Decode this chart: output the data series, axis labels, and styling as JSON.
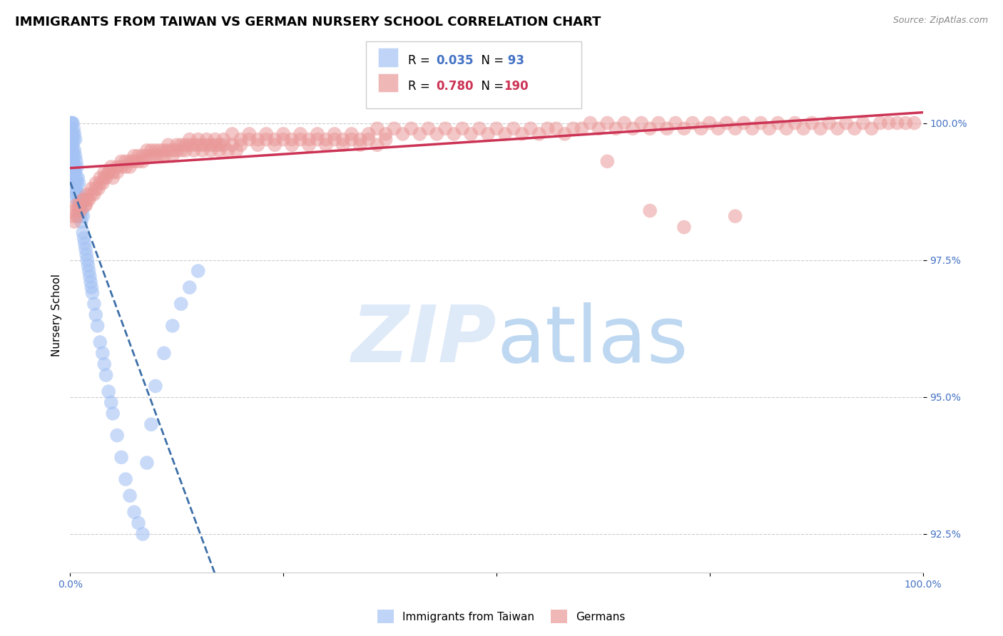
{
  "title": "IMMIGRANTS FROM TAIWAN VS GERMAN NURSERY SCHOOL CORRELATION CHART",
  "source": "Source: ZipAtlas.com",
  "ylabel": "Nursery School",
  "xmin": 0.0,
  "xmax": 1.0,
  "ymin": 91.8,
  "ymax": 101.2,
  "blue_R": 0.035,
  "blue_N": 93,
  "pink_R": 0.78,
  "pink_N": 190,
  "blue_color": "#a4c2f4",
  "pink_color": "#ea9999",
  "blue_line_color": "#3d6fa8",
  "pink_line_color": "#cc3355",
  "legend_label_blue": "Immigrants from Taiwan",
  "legend_label_pink": "Germans",
  "background_color": "#ffffff",
  "grid_color": "#cccccc",
  "axis_label_color": "#4472c4",
  "title_fontsize": 13,
  "axis_fontsize": 11,
  "tick_fontsize": 10,
  "blue_scatter_x": [
    0.001,
    0.001,
    0.001,
    0.001,
    0.002,
    0.002,
    0.002,
    0.002,
    0.002,
    0.003,
    0.003,
    0.003,
    0.003,
    0.003,
    0.003,
    0.004,
    0.004,
    0.004,
    0.004,
    0.005,
    0.005,
    0.005,
    0.005,
    0.006,
    0.006,
    0.006,
    0.006,
    0.007,
    0.007,
    0.007,
    0.008,
    0.008,
    0.008,
    0.009,
    0.009,
    0.01,
    0.01,
    0.01,
    0.011,
    0.011,
    0.012,
    0.012,
    0.013,
    0.013,
    0.014,
    0.015,
    0.015,
    0.016,
    0.017,
    0.018,
    0.019,
    0.02,
    0.021,
    0.022,
    0.023,
    0.024,
    0.025,
    0.026,
    0.028,
    0.03,
    0.032,
    0.035,
    0.038,
    0.04,
    0.042,
    0.045,
    0.048,
    0.05,
    0.055,
    0.06,
    0.065,
    0.07,
    0.075,
    0.08,
    0.085,
    0.09,
    0.095,
    0.1,
    0.11,
    0.12,
    0.13,
    0.14,
    0.15,
    0.001,
    0.001,
    0.002,
    0.002,
    0.003,
    0.003,
    0.004,
    0.005,
    0.006,
    0.007
  ],
  "blue_scatter_y": [
    99.8,
    99.6,
    100.0,
    99.9,
    99.7,
    99.5,
    99.8,
    100.0,
    99.4,
    99.6,
    99.3,
    99.8,
    100.0,
    99.5,
    99.2,
    99.7,
    99.4,
    99.9,
    99.1,
    99.5,
    99.2,
    99.8,
    98.9,
    99.4,
    99.1,
    99.7,
    98.8,
    99.3,
    99.0,
    98.7,
    99.2,
    98.9,
    98.6,
    99.0,
    98.7,
    98.9,
    98.6,
    98.3,
    98.7,
    98.4,
    98.6,
    98.3,
    98.5,
    98.2,
    98.4,
    98.3,
    98.0,
    97.9,
    97.8,
    97.7,
    97.6,
    97.5,
    97.4,
    97.3,
    97.2,
    97.1,
    97.0,
    96.9,
    96.7,
    96.5,
    96.3,
    96.0,
    95.8,
    95.6,
    95.4,
    95.1,
    94.9,
    94.7,
    94.3,
    93.9,
    93.5,
    93.2,
    92.9,
    92.7,
    92.5,
    93.8,
    94.5,
    95.2,
    95.8,
    96.3,
    96.7,
    97.0,
    97.3,
    99.3,
    99.5,
    99.1,
    99.4,
    99.0,
    99.3,
    99.2,
    99.1,
    98.9,
    98.7
  ],
  "pink_scatter_x": [
    0.003,
    0.005,
    0.007,
    0.01,
    0.012,
    0.015,
    0.018,
    0.02,
    0.022,
    0.025,
    0.028,
    0.03,
    0.033,
    0.035,
    0.038,
    0.04,
    0.042,
    0.045,
    0.048,
    0.05,
    0.055,
    0.06,
    0.065,
    0.07,
    0.075,
    0.08,
    0.085,
    0.09,
    0.095,
    0.1,
    0.105,
    0.11,
    0.115,
    0.12,
    0.125,
    0.13,
    0.135,
    0.14,
    0.145,
    0.15,
    0.155,
    0.16,
    0.165,
    0.17,
    0.175,
    0.18,
    0.19,
    0.2,
    0.21,
    0.22,
    0.23,
    0.24,
    0.25,
    0.26,
    0.27,
    0.28,
    0.29,
    0.3,
    0.31,
    0.32,
    0.33,
    0.34,
    0.35,
    0.36,
    0.37,
    0.38,
    0.39,
    0.4,
    0.41,
    0.42,
    0.43,
    0.44,
    0.45,
    0.46,
    0.47,
    0.48,
    0.49,
    0.5,
    0.51,
    0.52,
    0.53,
    0.54,
    0.55,
    0.56,
    0.57,
    0.58,
    0.59,
    0.6,
    0.61,
    0.62,
    0.63,
    0.64,
    0.65,
    0.66,
    0.67,
    0.68,
    0.69,
    0.7,
    0.71,
    0.72,
    0.73,
    0.74,
    0.75,
    0.76,
    0.77,
    0.78,
    0.79,
    0.8,
    0.81,
    0.82,
    0.83,
    0.84,
    0.85,
    0.86,
    0.87,
    0.88,
    0.89,
    0.9,
    0.91,
    0.92,
    0.93,
    0.94,
    0.95,
    0.96,
    0.97,
    0.98,
    0.99,
    0.005,
    0.008,
    0.01,
    0.012,
    0.015,
    0.018,
    0.02,
    0.025,
    0.03,
    0.035,
    0.04,
    0.045,
    0.05,
    0.055,
    0.06,
    0.065,
    0.07,
    0.075,
    0.08,
    0.085,
    0.09,
    0.095,
    0.1,
    0.105,
    0.11,
    0.115,
    0.12,
    0.125,
    0.13,
    0.135,
    0.14,
    0.145,
    0.15,
    0.155,
    0.16,
    0.165,
    0.17,
    0.175,
    0.18,
    0.185,
    0.19,
    0.195,
    0.2,
    0.21,
    0.22,
    0.23,
    0.24,
    0.25,
    0.26,
    0.27,
    0.28,
    0.29,
    0.3,
    0.31,
    0.32,
    0.33,
    0.34,
    0.35,
    0.36,
    0.37,
    0.63,
    0.68,
    0.72,
    0.78
  ],
  "pink_scatter_y": [
    98.3,
    98.4,
    98.5,
    98.5,
    98.4,
    98.6,
    98.5,
    98.7,
    98.6,
    98.8,
    98.7,
    98.9,
    98.8,
    99.0,
    98.9,
    99.1,
    99.0,
    99.1,
    99.2,
    99.1,
    99.2,
    99.3,
    99.2,
    99.3,
    99.4,
    99.3,
    99.4,
    99.5,
    99.4,
    99.5,
    99.4,
    99.5,
    99.6,
    99.5,
    99.6,
    99.5,
    99.6,
    99.7,
    99.6,
    99.7,
    99.6,
    99.7,
    99.6,
    99.7,
    99.6,
    99.7,
    99.8,
    99.7,
    99.8,
    99.7,
    99.8,
    99.7,
    99.8,
    99.7,
    99.8,
    99.7,
    99.8,
    99.7,
    99.8,
    99.7,
    99.8,
    99.7,
    99.8,
    99.9,
    99.8,
    99.9,
    99.8,
    99.9,
    99.8,
    99.9,
    99.8,
    99.9,
    99.8,
    99.9,
    99.8,
    99.9,
    99.8,
    99.9,
    99.8,
    99.9,
    99.8,
    99.9,
    99.8,
    99.9,
    99.9,
    99.8,
    99.9,
    99.9,
    100.0,
    99.9,
    100.0,
    99.9,
    100.0,
    99.9,
    100.0,
    99.9,
    100.0,
    99.9,
    100.0,
    99.9,
    100.0,
    99.9,
    100.0,
    99.9,
    100.0,
    99.9,
    100.0,
    99.9,
    100.0,
    99.9,
    100.0,
    99.9,
    100.0,
    99.9,
    100.0,
    99.9,
    100.0,
    99.9,
    100.0,
    99.9,
    100.0,
    99.9,
    100.0,
    100.0,
    100.0,
    100.0,
    100.0,
    98.2,
    98.3,
    98.4,
    98.5,
    98.6,
    98.5,
    98.6,
    98.7,
    98.8,
    98.9,
    99.0,
    99.1,
    99.0,
    99.1,
    99.2,
    99.3,
    99.2,
    99.3,
    99.4,
    99.3,
    99.4,
    99.5,
    99.4,
    99.5,
    99.4,
    99.5,
    99.4,
    99.5,
    99.6,
    99.5,
    99.6,
    99.5,
    99.6,
    99.5,
    99.6,
    99.5,
    99.6,
    99.5,
    99.6,
    99.5,
    99.6,
    99.5,
    99.6,
    99.7,
    99.6,
    99.7,
    99.6,
    99.7,
    99.6,
    99.7,
    99.6,
    99.7,
    99.6,
    99.7,
    99.6,
    99.7,
    99.6,
    99.7,
    99.6,
    99.7,
    99.3,
    98.4,
    98.1,
    98.3
  ]
}
